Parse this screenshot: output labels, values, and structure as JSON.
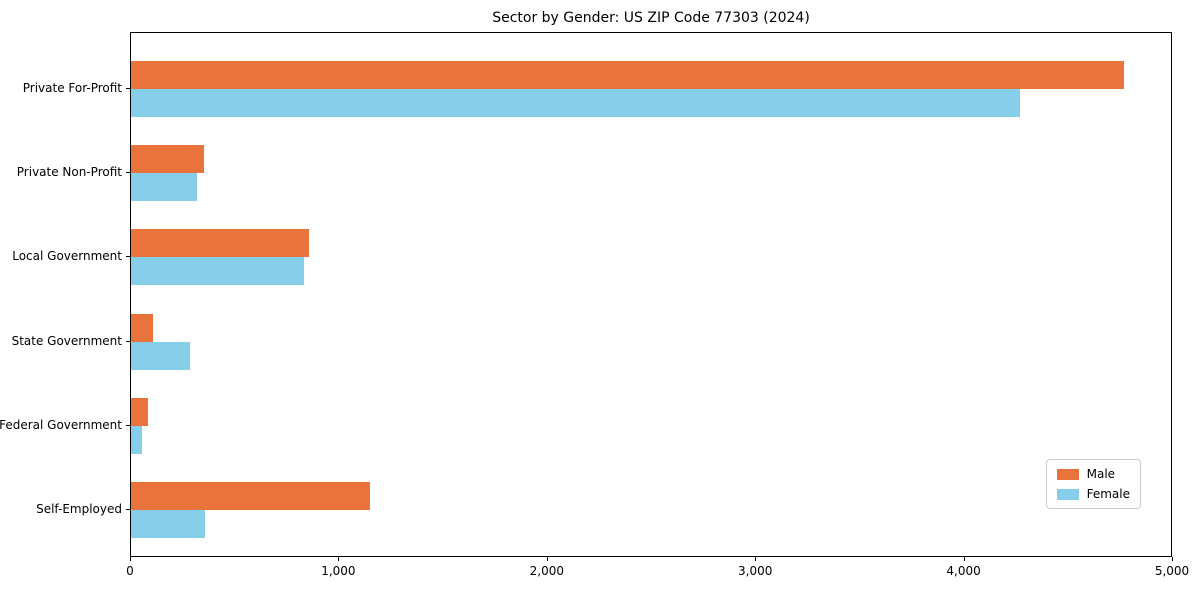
{
  "chart_data": {
    "type": "bar",
    "orientation": "horizontal",
    "title": "Sector by Gender: US ZIP Code 77303 (2024)",
    "categories": [
      "Private For-Profit",
      "Private Non-Profit",
      "Local Government",
      "State Government",
      "Federal Government",
      "Self-Employed"
    ],
    "series": [
      {
        "name": "Male",
        "color": "#E8743B",
        "values": [
          4775,
          350,
          855,
          105,
          80,
          1150
        ]
      },
      {
        "name": "Female",
        "color": "#87CEEB",
        "values": [
          4275,
          315,
          830,
          285,
          55,
          355
        ]
      }
    ],
    "xlabel": "",
    "ylabel": "",
    "xlim": [
      0,
      5000
    ],
    "x_ticks": [
      0,
      1000,
      2000,
      3000,
      4000,
      5000
    ],
    "x_tick_labels": [
      "0",
      "1,000",
      "2,000",
      "3,000",
      "4,000",
      "5,000"
    ],
    "grid": false,
    "legend": {
      "position": "lower-right",
      "entries": [
        "Male",
        "Female"
      ]
    }
  }
}
